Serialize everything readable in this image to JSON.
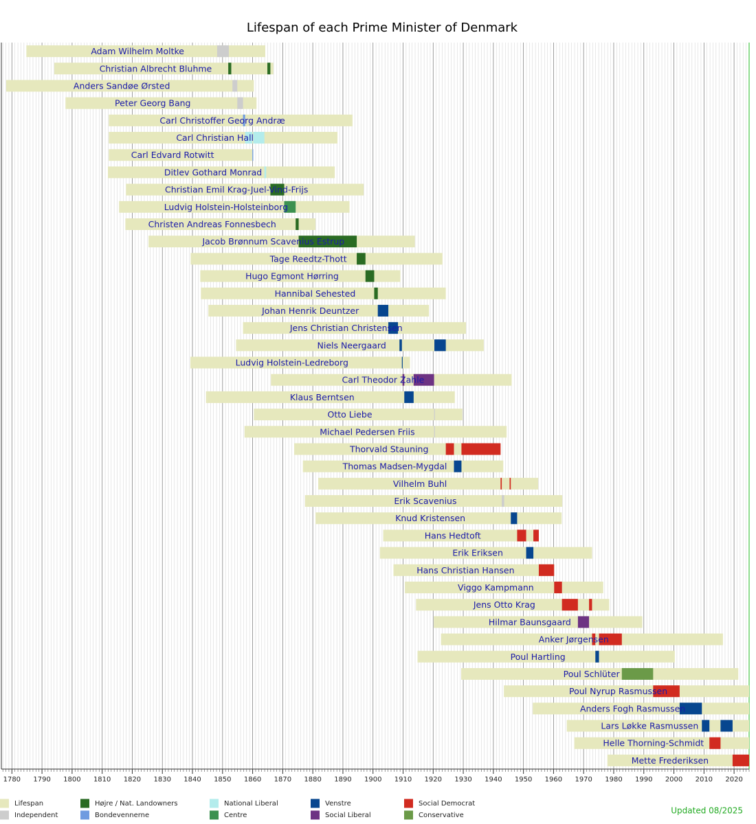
{
  "chart_data": {
    "type": "timeline",
    "title": "Lifespan of each Prime Minister of Denmark",
    "note": "Updated 08/2025",
    "xlim": [
      1776.5,
      2025
    ],
    "xticks": [
      1780,
      1790,
      1800,
      1810,
      1820,
      1830,
      1840,
      1850,
      1860,
      1870,
      1880,
      1890,
      1900,
      1910,
      1920,
      1930,
      1940,
      1950,
      1960,
      1970,
      1980,
      1990,
      2000,
      2010,
      2020
    ],
    "minor_tick_interval": 1,
    "grid": true,
    "legend": [
      {
        "name": "Lifespan",
        "color": "#e6e8bd"
      },
      {
        "name": "Independent",
        "color": "#cdcdcd"
      },
      {
        "name": "Højre / Nat. Landowners",
        "color": "#2a6b23"
      },
      {
        "name": "Bondevennerne",
        "color": "#6f9be0"
      },
      {
        "name": "National Liberal",
        "color": "#b3ecec"
      },
      {
        "name": "Centre",
        "color": "#3c9150"
      },
      {
        "name": "Venstre",
        "color": "#07468f"
      },
      {
        "name": "Social Liberal",
        "color": "#6d3383"
      },
      {
        "name": "Social Democrat",
        "color": "#d12b20"
      },
      {
        "name": "Conservative",
        "color": "#6b9a48"
      }
    ],
    "series": [
      {
        "name": "Adam Wilhelm Moltke",
        "lifespan": [
          1784.8,
          1864.2
        ],
        "terms": [
          {
            "party": 1,
            "start": 1848.2,
            "end": 1852.1
          }
        ]
      },
      {
        "name": "Christian Albrecht Bluhme",
        "lifespan": [
          1794.1,
          1866.9
        ],
        "terms": [
          {
            "party": 2,
            "start": 1851.9,
            "end": 1852.9
          },
          {
            "party": 2,
            "start": 1864.9,
            "end": 1865.9
          }
        ]
      },
      {
        "name": "Anders Sandøe Ørsted",
        "lifespan": [
          1778.1,
          1860.4
        ],
        "terms": [
          {
            "party": 1,
            "start": 1853.3,
            "end": 1854.9
          }
        ]
      },
      {
        "name": "Peter Georg Bang",
        "lifespan": [
          1797.8,
          1861.3
        ],
        "terms": [
          {
            "party": 1,
            "start": 1854.9,
            "end": 1856.8
          }
        ]
      },
      {
        "name": "Carl Christoffer Georg Andræ",
        "lifespan": [
          1812.2,
          1893.2
        ],
        "terms": [
          {
            "party": 3,
            "start": 1856.8,
            "end": 1857.5
          }
        ]
      },
      {
        "name": "Carl Christian Hall",
        "lifespan": [
          1812.2,
          1888.2
        ],
        "terms": [
          {
            "party": 4,
            "start": 1857.5,
            "end": 1859.9
          },
          {
            "party": 4,
            "start": 1860.2,
            "end": 1863.9
          }
        ]
      },
      {
        "name": "Carl Edvard Rotwitt",
        "lifespan": [
          1812.2,
          1860.1
        ],
        "terms": [
          {
            "party": 3,
            "start": 1859.9,
            "end": 1860.2
          }
        ]
      },
      {
        "name": "Ditlev Gothard Monrad",
        "lifespan": [
          1811.9,
          1887.3
        ],
        "terms": [
          {
            "party": 4,
            "start": 1863.9,
            "end": 1864.5
          }
        ]
      },
      {
        "name": "Christian Emil Krag-Juel-Vind-Frijs",
        "lifespan": [
          1817.9,
          1896.9
        ],
        "terms": [
          {
            "party": 2,
            "start": 1865.9,
            "end": 1870.5
          }
        ]
      },
      {
        "name": "Ludvig Holstein-Holsteinborg",
        "lifespan": [
          1815.6,
          1892.2
        ],
        "terms": [
          {
            "party": 5,
            "start": 1870.5,
            "end": 1874.3
          }
        ]
      },
      {
        "name": "Christen Andreas Fonnesbech",
        "lifespan": [
          1817.7,
          1880.9
        ],
        "terms": [
          {
            "party": 2,
            "start": 1874.3,
            "end": 1875.3
          }
        ]
      },
      {
        "name": "Jacob Brønnum Scavenius Estrup",
        "lifespan": [
          1825.4,
          1913.9
        ],
        "terms": [
          {
            "party": 2,
            "start": 1875.3,
            "end": 1894.6
          }
        ]
      },
      {
        "name": "Tage Reedtz-Thott",
        "lifespan": [
          1839.4,
          1923.1
        ],
        "terms": [
          {
            "party": 2,
            "start": 1894.6,
            "end": 1897.5
          }
        ]
      },
      {
        "name": "Hugo Egmont Hørring",
        "lifespan": [
          1842.6,
          1909.1
        ],
        "terms": [
          {
            "party": 2,
            "start": 1897.5,
            "end": 1900.4
          }
        ]
      },
      {
        "name": "Hannibal Sehested",
        "lifespan": [
          1842.8,
          1924.2
        ],
        "terms": [
          {
            "party": 2,
            "start": 1900.4,
            "end": 1901.6
          }
        ]
      },
      {
        "name": "Johan Henrik Deuntzer",
        "lifespan": [
          1845.3,
          1918.6
        ],
        "terms": [
          {
            "party": 6,
            "start": 1901.6,
            "end": 1905.1
          }
        ]
      },
      {
        "name": "Jens Christian Christensen",
        "lifespan": [
          1856.8,
          1930.9
        ],
        "terms": [
          {
            "party": 6,
            "start": 1905.1,
            "end": 1908.3
          }
        ]
      },
      {
        "name": "Niels Neergaard",
        "lifespan": [
          1854.5,
          1936.8
        ],
        "terms": [
          {
            "party": 6,
            "start": 1908.8,
            "end": 1909.6
          },
          {
            "party": 6,
            "start": 1920.4,
            "end": 1924.2
          }
        ]
      },
      {
        "name": "Ludvig Holstein-Ledreborg",
        "lifespan": [
          1839.3,
          1912.3
        ],
        "terms": [
          {
            "party": 6,
            "start": 1909.6,
            "end": 1909.8
          }
        ]
      },
      {
        "name": "Carl Theodor Zahle",
        "lifespan": [
          1866.1,
          1946.1
        ],
        "terms": [
          {
            "party": 7,
            "start": 1909.8,
            "end": 1910.4
          },
          {
            "party": 7,
            "start": 1913.5,
            "end": 1920.3
          }
        ]
      },
      {
        "name": "Klaus Berntsen",
        "lifespan": [
          1844.5,
          1927.2
        ],
        "terms": [
          {
            "party": 6,
            "start": 1910.4,
            "end": 1913.5
          }
        ]
      },
      {
        "name": "Otto Liebe",
        "lifespan": [
          1860.4,
          1929.7
        ],
        "terms": [
          {
            "party": 1,
            "start": 1920.3,
            "end": 1920.4
          }
        ]
      },
      {
        "name": "Michael Pedersen Friis",
        "lifespan": [
          1857.3,
          1944.4
        ],
        "terms": [
          {
            "party": 1,
            "start": 1920.3,
            "end": 1920.4
          }
        ]
      },
      {
        "name": "Thorvald Stauning",
        "lifespan": [
          1873.8,
          1942.4
        ],
        "terms": [
          {
            "party": 8,
            "start": 1924.2,
            "end": 1926.9
          },
          {
            "party": 8,
            "start": 1929.4,
            "end": 1942.4
          }
        ]
      },
      {
        "name": "Thomas Madsen-Mygdal",
        "lifespan": [
          1876.7,
          1943.3
        ],
        "terms": [
          {
            "party": 6,
            "start": 1926.9,
            "end": 1929.4
          }
        ]
      },
      {
        "name": "Vilhelm Buhl",
        "lifespan": [
          1881.8,
          1954.9
        ],
        "terms": [
          {
            "party": 8,
            "start": 1942.4,
            "end": 1942.8
          },
          {
            "party": 8,
            "start": 1945.4,
            "end": 1945.8
          }
        ]
      },
      {
        "name": "Erik Scavenius",
        "lifespan": [
          1877.4,
          1962.9
        ],
        "terms": [
          {
            "party": 1,
            "start": 1942.8,
            "end": 1943.6
          }
        ]
      },
      {
        "name": "Knud Kristensen",
        "lifespan": [
          1880.9,
          1962.7
        ],
        "terms": [
          {
            "party": 6,
            "start": 1945.8,
            "end": 1947.9
          }
        ]
      },
      {
        "name": "Hans Hedtoft",
        "lifespan": [
          1903.4,
          1955.1
        ],
        "terms": [
          {
            "party": 8,
            "start": 1947.9,
            "end": 1950.9
          },
          {
            "party": 8,
            "start": 1953.3,
            "end": 1955.1
          }
        ]
      },
      {
        "name": "Erik Eriksen",
        "lifespan": [
          1902.3,
          1972.8
        ],
        "terms": [
          {
            "party": 6,
            "start": 1950.9,
            "end": 1953.3
          }
        ]
      },
      {
        "name": "Hans Christian Hansen",
        "lifespan": [
          1906.8,
          1960.2
        ],
        "terms": [
          {
            "party": 8,
            "start": 1955.1,
            "end": 1960.2
          }
        ]
      },
      {
        "name": "Viggo Kampmann",
        "lifespan": [
          1910.6,
          1976.5
        ],
        "terms": [
          {
            "party": 8,
            "start": 1960.2,
            "end": 1962.8
          }
        ]
      },
      {
        "name": "Jens Otto Krag",
        "lifespan": [
          1914.3,
          1978.5
        ],
        "terms": [
          {
            "party": 8,
            "start": 1962.8,
            "end": 1968.1
          },
          {
            "party": 8,
            "start": 1971.8,
            "end": 1972.8
          }
        ]
      },
      {
        "name": "Hilmar Baunsgaard",
        "lifespan": [
          1920.2,
          1989.5
        ],
        "terms": [
          {
            "party": 7,
            "start": 1968.1,
            "end": 1971.8
          }
        ]
      },
      {
        "name": "Anker Jørgensen",
        "lifespan": [
          1922.6,
          2016.3
        ],
        "terms": [
          {
            "party": 8,
            "start": 1972.8,
            "end": 1973.9
          },
          {
            "party": 8,
            "start": 1975.1,
            "end": 1982.7
          }
        ]
      },
      {
        "name": "Poul Hartling",
        "lifespan": [
          1914.8,
          2000.3
        ],
        "terms": [
          {
            "party": 6,
            "start": 1973.9,
            "end": 1975.1
          }
        ]
      },
      {
        "name": "Poul Schlüter",
        "lifespan": [
          1929.3,
          2021.4
        ],
        "terms": [
          {
            "party": 9,
            "start": 1982.7,
            "end": 1993.1
          }
        ]
      },
      {
        "name": "Poul Nyrup Rasmussen",
        "lifespan": [
          1943.5,
          null
        ],
        "terms": [
          {
            "party": 8,
            "start": 1993.1,
            "end": 2001.9
          }
        ]
      },
      {
        "name": "Anders Fogh Rasmussen",
        "lifespan": [
          1953.1,
          null
        ],
        "terms": [
          {
            "party": 6,
            "start": 2001.9,
            "end": 2009.3
          }
        ]
      },
      {
        "name": "Lars Løkke Rasmussen",
        "lifespan": [
          1964.4,
          null
        ],
        "terms": [
          {
            "party": 6,
            "start": 2009.3,
            "end": 2011.8
          },
          {
            "party": 6,
            "start": 2015.5,
            "end": 2019.5
          }
        ]
      },
      {
        "name": "Helle Thorning-Schmidt",
        "lifespan": [
          1966.9,
          null
        ],
        "terms": [
          {
            "party": 8,
            "start": 2011.8,
            "end": 2015.5
          }
        ]
      },
      {
        "name": "Mette Frederiksen",
        "lifespan": [
          1977.9,
          null
        ],
        "terms": [
          {
            "party": 8,
            "start": 2019.5,
            "end": null
          }
        ]
      }
    ]
  }
}
